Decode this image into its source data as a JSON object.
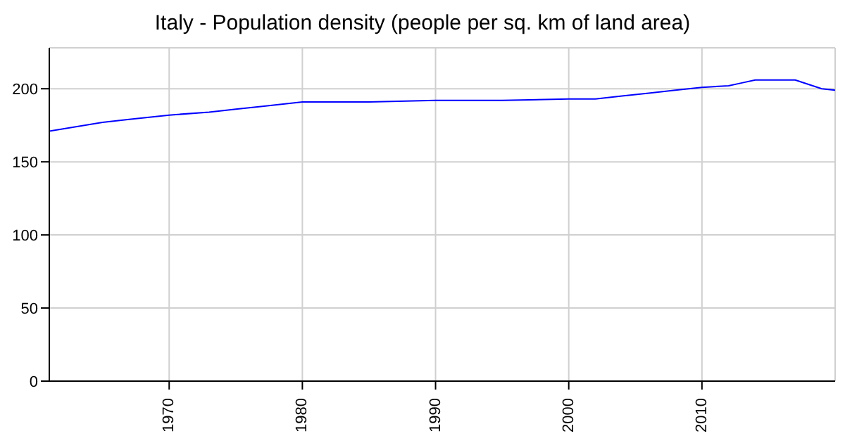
{
  "chart_data": {
    "type": "line",
    "title": "Italy - Population density (people per sq. km of land area)",
    "x": [
      1961,
      1963,
      1965,
      1967,
      1970,
      1973,
      1975,
      1977,
      1980,
      1985,
      1990,
      1995,
      2000,
      2002,
      2004,
      2006,
      2008,
      2010,
      2012,
      2013,
      2014,
      2016,
      2017,
      2018,
      2019,
      2020
    ],
    "series": [
      {
        "color": "#0000ff",
        "values": [
          171,
          174,
          177,
          179,
          182,
          184,
          186,
          188,
          191,
          191,
          192,
          192,
          193,
          193,
          195,
          197,
          199,
          201,
          202,
          204,
          206,
          206,
          206,
          203,
          200,
          199
        ]
      }
    ],
    "xlim": [
      1961,
      2020
    ],
    "xticks": [
      1970,
      1980,
      1990,
      2000,
      2010
    ],
    "ylim": [
      0,
      228
    ],
    "yticks": [
      0,
      50,
      100,
      150,
      200
    ],
    "grid": true,
    "marker": "none",
    "line_style": "solid"
  }
}
